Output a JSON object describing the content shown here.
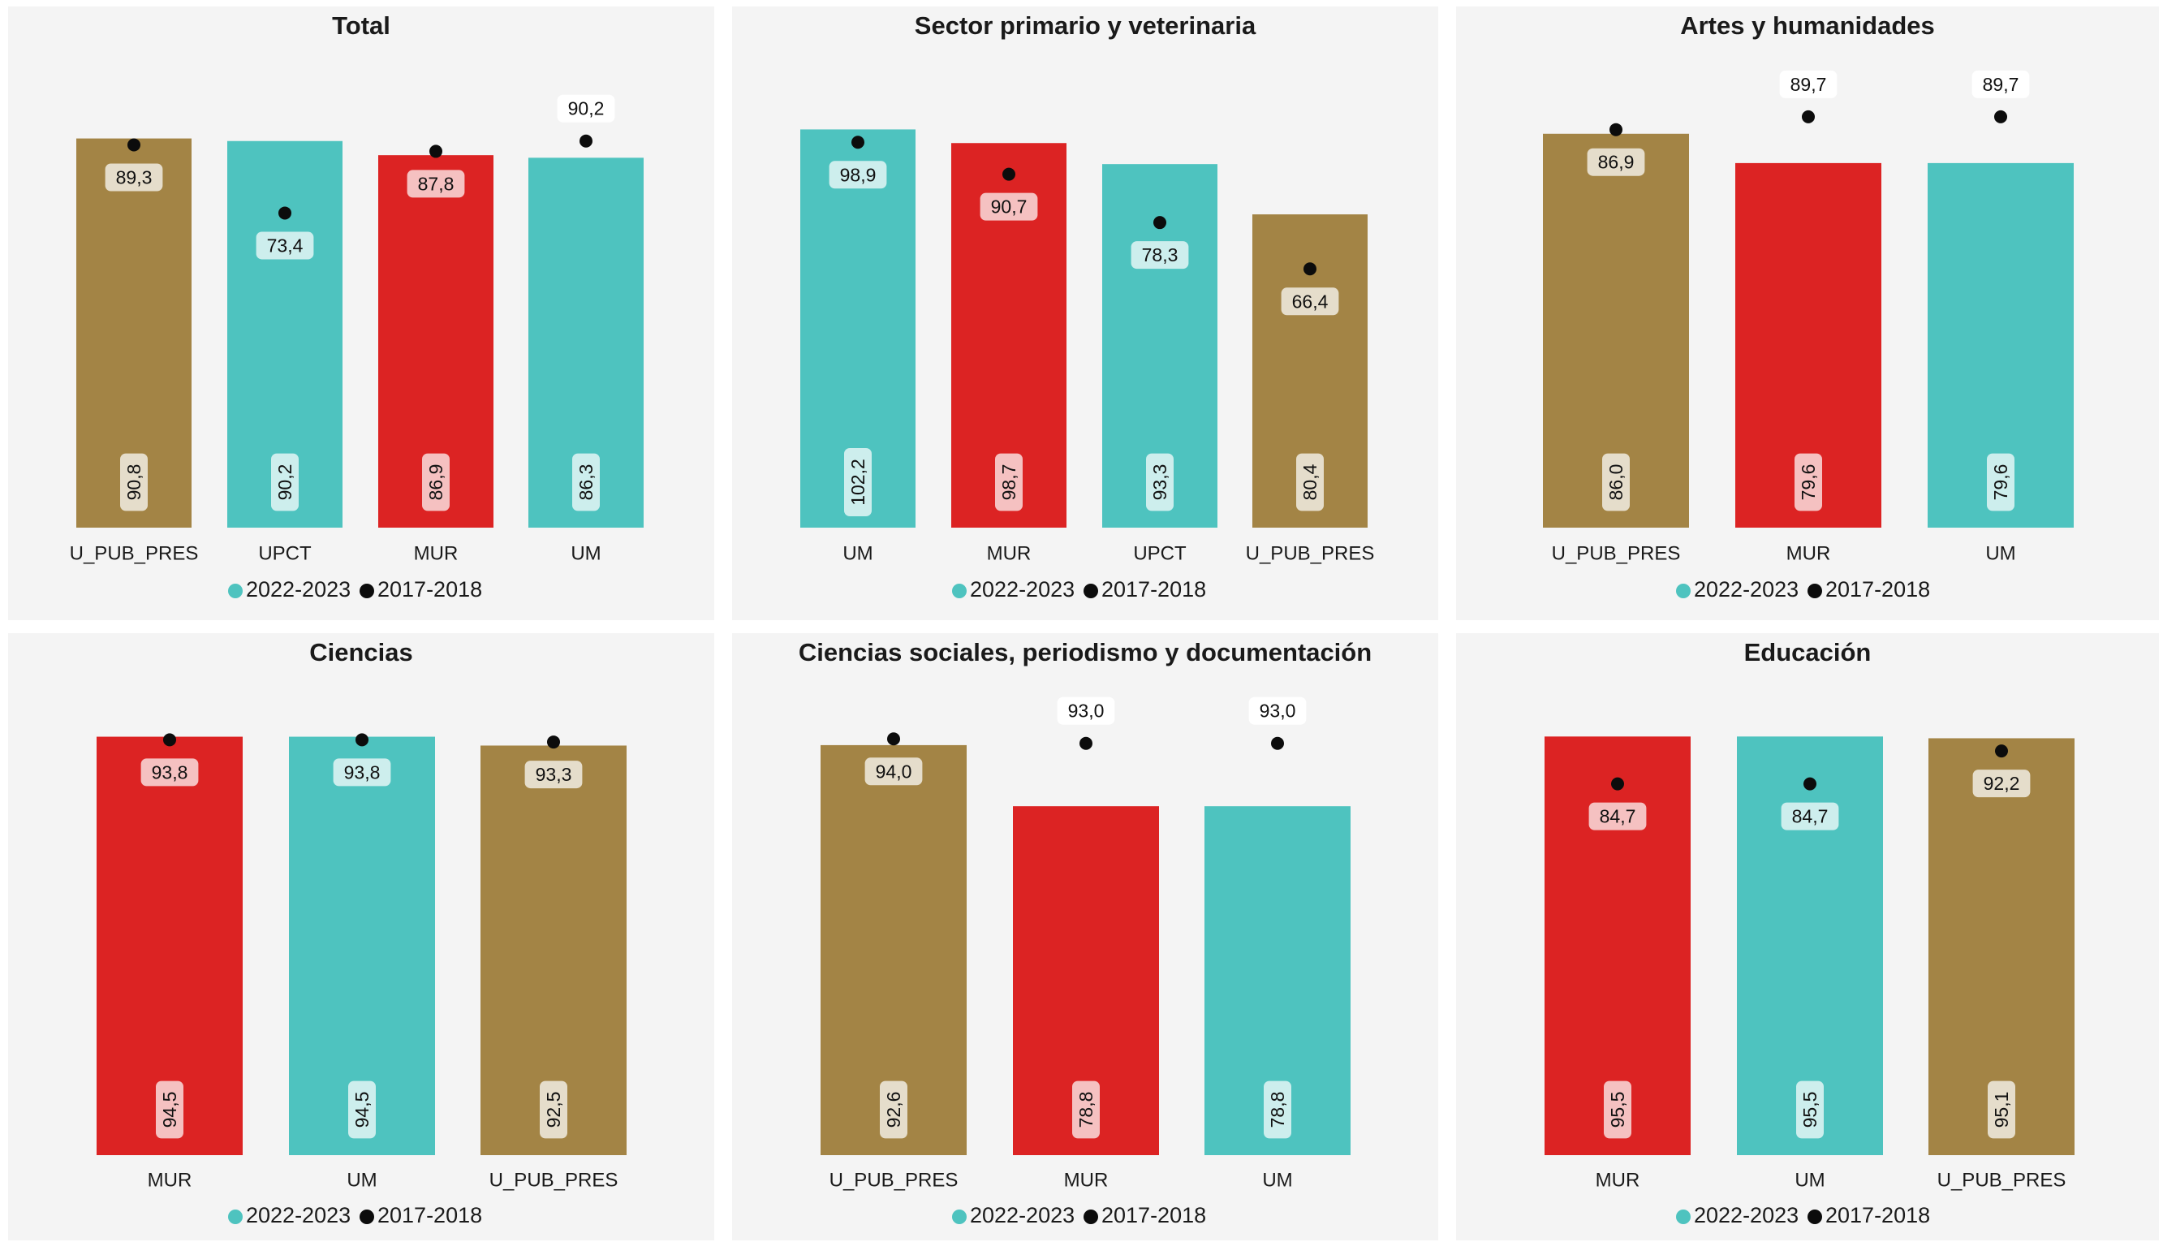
{
  "colors": {
    "UM": "#4ec3bf",
    "UPCT": "#4ec3bf",
    "MUR": "#dc2323",
    "U_PUB_PRES": "#a38445",
    "dot": "#0c0c0c",
    "panel_bg": "#f4f4f4"
  },
  "legend": {
    "series_2022": "2022-2023",
    "series_2017": "2017-2018"
  },
  "chart_data": [
    {
      "type": "bar",
      "title": "Total",
      "categories": [
        "U_PUB_PRES",
        "UPCT",
        "MUR",
        "UM"
      ],
      "series": [
        {
          "name": "2022-2023",
          "values": [
            90.8,
            90.2,
            86.9,
            86.3
          ],
          "labels": [
            "90,8",
            "90,2",
            "86,9",
            "86,3"
          ]
        },
        {
          "name": "2017-2018",
          "values": [
            89.3,
            73.4,
            87.8,
            90.2
          ],
          "labels": [
            "89,3",
            "73,4",
            "87,8",
            "90,2"
          ]
        }
      ],
      "ylim": [
        0,
        100
      ]
    },
    {
      "type": "bar",
      "title": "Sector primario y veterinaria",
      "categories": [
        "UM",
        "MUR",
        "UPCT",
        "U_PUB_PRES"
      ],
      "series": [
        {
          "name": "2022-2023",
          "values": [
            102.2,
            98.7,
            93.3,
            80.4
          ],
          "labels": [
            "102,2",
            "98,7",
            "93,3",
            "80,4"
          ]
        },
        {
          "name": "2017-2018",
          "values": [
            98.9,
            90.7,
            78.3,
            66.4
          ],
          "labels": [
            "98,9",
            "90,7",
            "78,3",
            "66,4"
          ]
        }
      ],
      "ylim": [
        0,
        110
      ]
    },
    {
      "type": "bar",
      "title": "Artes y humanidades",
      "categories": [
        "U_PUB_PRES",
        "MUR",
        "UM"
      ],
      "series": [
        {
          "name": "2022-2023",
          "values": [
            86.0,
            79.6,
            79.6
          ],
          "labels": [
            "86,0",
            "79,6",
            "79,6"
          ]
        },
        {
          "name": "2017-2018",
          "values": [
            86.9,
            89.7,
            89.7
          ],
          "labels": [
            "86,9",
            "89,7",
            "89,7"
          ]
        }
      ],
      "ylim": [
        0,
        95
      ]
    },
    {
      "type": "bar",
      "title": "Ciencias",
      "categories": [
        "MUR",
        "UM",
        "U_PUB_PRES"
      ],
      "series": [
        {
          "name": "2022-2023",
          "values": [
            94.5,
            94.5,
            92.5
          ],
          "labels": [
            "94,5",
            "94,5",
            "92,5"
          ]
        },
        {
          "name": "2017-2018",
          "values": [
            93.8,
            93.8,
            93.3
          ],
          "labels": [
            "93,8",
            "93,8",
            "93,3"
          ]
        }
      ],
      "ylim": [
        0,
        99
      ]
    },
    {
      "type": "bar",
      "title": "Ciencias sociales, periodismo y documentación",
      "categories": [
        "U_PUB_PRES",
        "MUR",
        "UM"
      ],
      "series": [
        {
          "name": "2022-2023",
          "values": [
            92.6,
            78.8,
            78.8
          ],
          "labels": [
            "92,6",
            "78,8",
            "78,8"
          ]
        },
        {
          "name": "2017-2018",
          "values": [
            94.0,
            93.0,
            93.0
          ],
          "labels": [
            "94,0",
            "93,0",
            "93,0"
          ]
        }
      ],
      "ylim": [
        0,
        99
      ]
    },
    {
      "type": "bar",
      "title": "Educación",
      "categories": [
        "MUR",
        "UM",
        "U_PUB_PRES"
      ],
      "series": [
        {
          "name": "2022-2023",
          "values": [
            95.5,
            95.5,
            95.1
          ],
          "labels": [
            "95,5",
            "95,5",
            "95,1"
          ]
        },
        {
          "name": "2017-2018",
          "values": [
            84.7,
            84.7,
            92.2
          ],
          "labels": [
            "84,7",
            "84,7",
            "92,2"
          ]
        }
      ],
      "ylim": [
        0,
        100
      ]
    }
  ]
}
